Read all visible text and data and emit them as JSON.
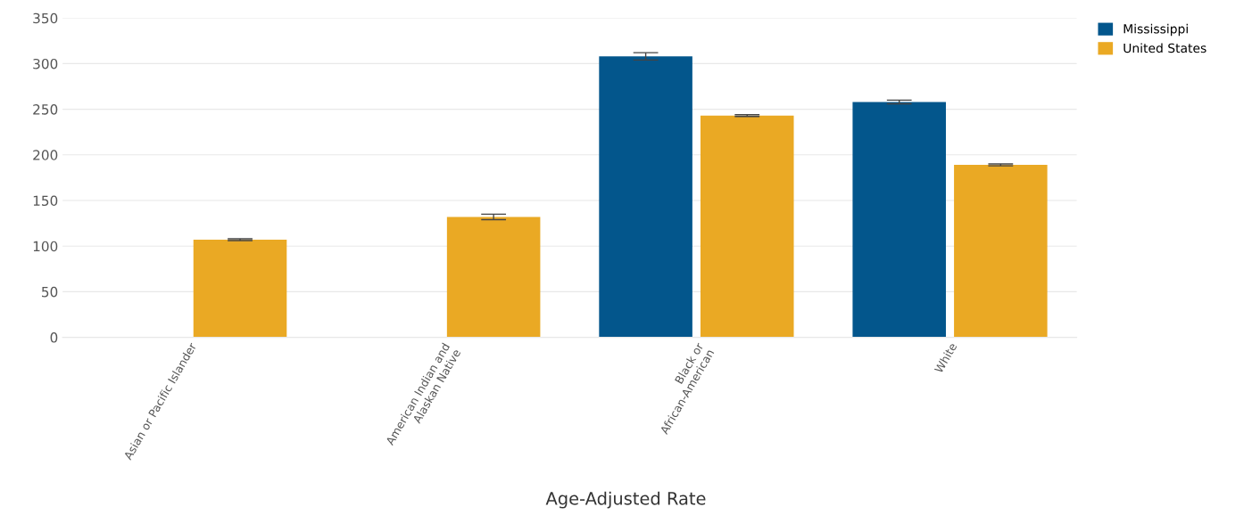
{
  "chart_data": {
    "type": "bar",
    "xlabel": "Age-Adjusted Rate",
    "categories": [
      "Asian or Pacific Islander",
      "American Indian and\nAlaskan Native",
      "Black or\nAfrican-American",
      "White"
    ],
    "series": [
      {
        "name": "Mississippi",
        "color": "#03568c",
        "values": [
          null,
          null,
          308,
          258
        ],
        "errors": [
          null,
          null,
          4,
          2
        ]
      },
      {
        "name": "United States",
        "color": "#eaa924",
        "values": [
          107,
          132,
          243,
          189
        ],
        "errors": [
          1,
          3,
          1,
          1
        ]
      }
    ],
    "ylim": [
      0,
      350
    ],
    "yticks": [
      0,
      50,
      100,
      150,
      200,
      250,
      300,
      350
    ],
    "grid": "y",
    "legend": "top right"
  }
}
